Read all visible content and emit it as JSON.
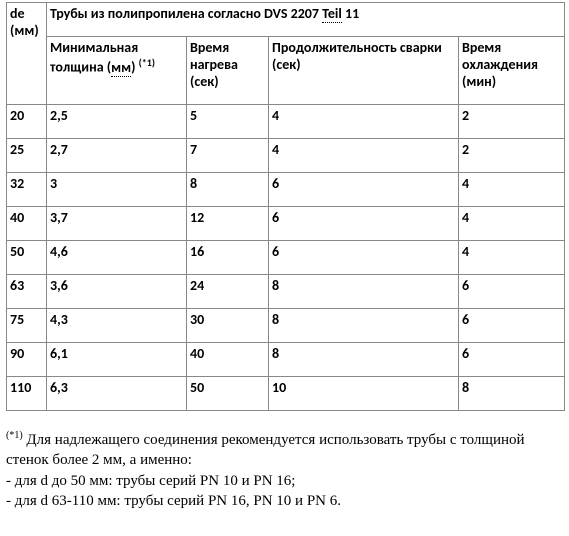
{
  "table": {
    "title": "Трубы из полипропилена согласно DVS 2207 ",
    "title_dotted": "Teil",
    "title_after": " 11",
    "col0_line1": "de",
    "col0_line2": "(мм)",
    "h1_pre": "Минимальная толщина (",
    "h1_dotted": "мм",
    "h1_post": ") ",
    "h1_sup": "(*1)",
    "h2": "Время нагрева (сек)",
    "h3": "Продолжительность сварки (сек)",
    "h4": "Время охлаждения (мин)",
    "rows": [
      {
        "c0": "20",
        "c1": "2,5",
        "c2": "5",
        "c3": "4",
        "c4": "2"
      },
      {
        "c0": "25",
        "c1": "2,7",
        "c2": "7",
        "c3": "4",
        "c4": "2"
      },
      {
        "c0": "32",
        "c1": "3",
        "c2": "8",
        "c3": "6",
        "c4": "4"
      },
      {
        "c0": "40",
        "c1": "3,7",
        "c2": "12",
        "c3": "6",
        "c4": "4"
      },
      {
        "c0": "50",
        "c1": "4,6",
        "c2": "16",
        "c3": "6",
        "c4": "4"
      },
      {
        "c0": "63",
        "c1": "3,6",
        "c2": "24",
        "c3": "8",
        "c4": "6"
      },
      {
        "c0": "75",
        "c1": "4,3",
        "c2": "30",
        "c3": "8",
        "c4": "6"
      },
      {
        "c0": "90",
        "c1": "6,1",
        "c2": "40",
        "c3": "8",
        "c4": "6"
      },
      {
        "c0": "110",
        "c1": "6,3",
        "c2": "50",
        "c3": "10",
        "c4": "8"
      }
    ]
  },
  "footnote": {
    "sup": "(*1)",
    "l1": " Для надлежащего соединения рекомендуется использовать трубы с толщиной стенок более 2 мм, а именно:",
    "l2": "- для d до 50 мм: трубы серий PN 10 и PN 16;",
    "l3": "- для d 63-110 мм: трубы серий PN 16, PN 10 и PN 6."
  }
}
